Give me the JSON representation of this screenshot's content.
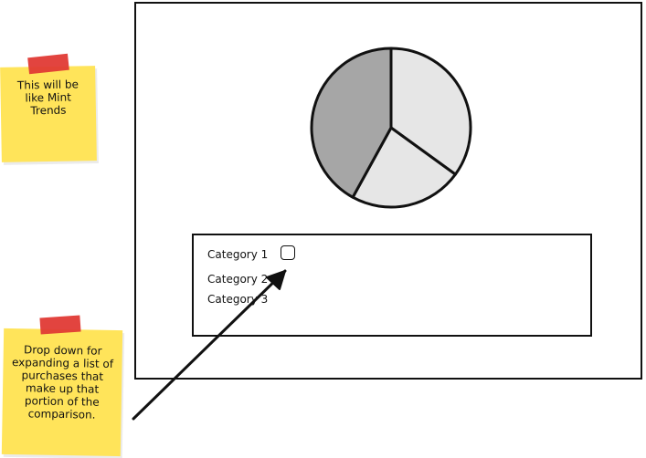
{
  "wireframe": {
    "pie_chart": {
      "slices": [
        {
          "name": "slice-1",
          "fraction": 0.35,
          "color": "#e6e6e6"
        },
        {
          "name": "slice-2",
          "fraction": 0.23,
          "color": "#e6e6e6"
        },
        {
          "name": "slice-3",
          "fraction": 0.42,
          "color": "#a6a6a6"
        }
      ]
    },
    "categories": [
      "Category 1",
      "Category 2",
      "Category 3"
    ]
  },
  "notes": {
    "top_note": "This will be like Mint Trends",
    "bottom_note": "Drop down for expanding a list of purchases that make up that portion of the comparison."
  },
  "colors": {
    "sticky_yellow": "#ffe45a",
    "tape_red": "#e03a35",
    "outline": "#111111"
  }
}
